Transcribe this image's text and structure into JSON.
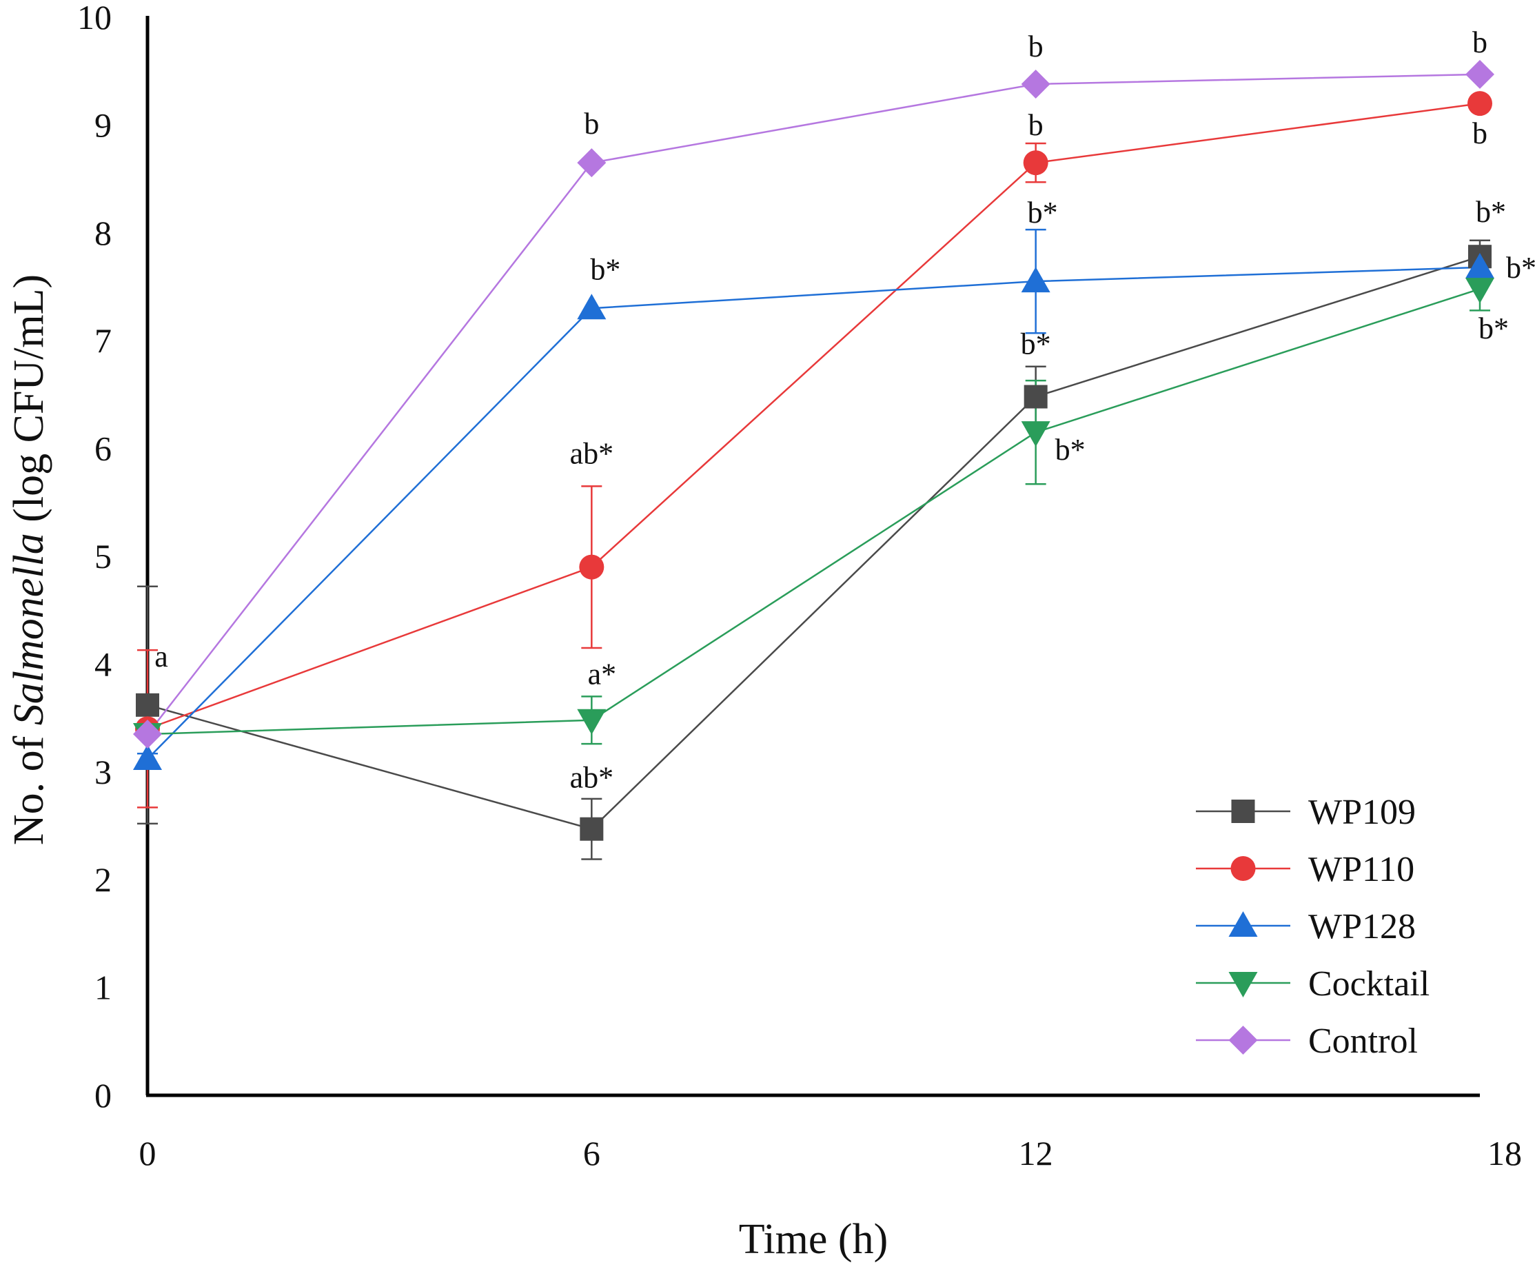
{
  "chart_data": {
    "type": "line",
    "title": "",
    "xlabel": "Time (h)",
    "ylabel": {
      "prefix": "No. of ",
      "italic": "Salmonella",
      "suffix": " (log CFU/mL)"
    },
    "x": [
      0,
      6,
      12,
      18
    ],
    "xlim": [
      0,
      18
    ],
    "ylim": [
      0,
      10
    ],
    "xticks": [
      "0",
      "6",
      "12",
      "18"
    ],
    "yticks": [
      "0",
      "1",
      "2",
      "3",
      "4",
      "5",
      "6",
      "7",
      "8",
      "9",
      "10"
    ],
    "grid": false,
    "legend_position": "bottom-right",
    "series": [
      {
        "name": "WP109",
        "color": "#4a4a4a",
        "marker": "square",
        "values": [
          3.62,
          2.47,
          6.48,
          7.78
        ],
        "errors": [
          1.1,
          0.28,
          0.28,
          0.15
        ],
        "annotations": [
          "",
          "ab*",
          "b*",
          "b*"
        ]
      },
      {
        "name": "WP110",
        "color": "#e8393a",
        "marker": "circle",
        "values": [
          3.4,
          4.9,
          8.65,
          9.2
        ],
        "errors": [
          0.73,
          0.75,
          0.18,
          0.0
        ],
        "annotations": [
          "a",
          "ab*",
          "b",
          "b"
        ]
      },
      {
        "name": "WP128",
        "color": "#1f6fd6",
        "marker": "triangle-up",
        "values": [
          3.12,
          7.3,
          7.55,
          7.68
        ],
        "errors": [
          0.05,
          0.0,
          0.48,
          0.0
        ],
        "annotations": [
          "",
          "b*",
          "b*",
          "b*"
        ]
      },
      {
        "name": "Cocktail",
        "color": "#2a9d5a",
        "marker": "triangle-down",
        "values": [
          3.35,
          3.48,
          6.15,
          7.48
        ],
        "errors": [
          0.0,
          0.22,
          0.48,
          0.2
        ],
        "annotations": [
          "",
          "a*",
          "b*",
          "b*"
        ]
      },
      {
        "name": "Control",
        "color": "#b577e0",
        "marker": "diamond",
        "values": [
          3.35,
          8.65,
          9.38,
          9.47
        ],
        "errors": [
          0.0,
          0.0,
          0.0,
          0.0
        ],
        "annotations": [
          "",
          "b",
          "b",
          "b"
        ]
      }
    ]
  }
}
